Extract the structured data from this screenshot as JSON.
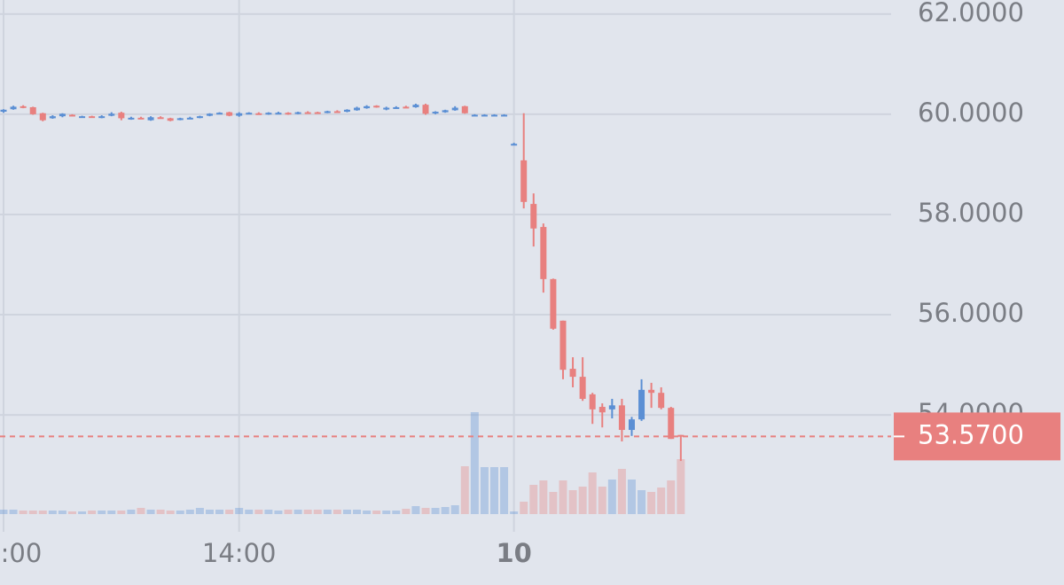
{
  "chart_data": {
    "type": "candlestick",
    "categories": [
      ":00",
      null,
      null,
      null,
      null,
      null,
      null,
      null,
      null,
      null,
      null,
      null,
      null,
      null,
      null,
      null,
      null,
      null,
      null,
      null,
      null,
      null,
      null,
      null,
      "14:00",
      null,
      null,
      null,
      null,
      null,
      null,
      null,
      null,
      null,
      null,
      null,
      null,
      null,
      null,
      null,
      null,
      null,
      null,
      null,
      null,
      null,
      null,
      null,
      null,
      null,
      null,
      null,
      "10",
      null,
      null,
      null,
      null,
      null,
      null,
      null,
      null,
      null,
      null,
      null,
      null,
      null,
      null,
      null,
      null,
      null
    ],
    "open": [
      60.05,
      60.1,
      60.16,
      60.14,
      60.02,
      59.92,
      59.96,
      59.99,
      59.95,
      59.96,
      59.93,
      59.97,
      60.03,
      59.91,
      59.93,
      59.88,
      59.94,
      59.92,
      59.89,
      59.93,
      59.93,
      59.97,
      60.01,
      60.04,
      59.97,
      60.01,
      60.02,
      60.0,
      60.01,
      60.03,
      60.01,
      60.04,
      60.04,
      60.03,
      60.06,
      60.05,
      60.08,
      60.12,
      60.17,
      60.1,
      60.12,
      60.15,
      60.14,
      60.19,
      60.03,
      60.04,
      60.08,
      60.16,
      59.98,
      59.98,
      59.98,
      59.98,
      59.39,
      59.08,
      58.21,
      57.75,
      56.71,
      55.88,
      54.92,
      54.76,
      54.41,
      54.16,
      54.11,
      54.19,
      53.7,
      53.91,
      54.5,
      54.44,
      54.14,
      53.6
    ],
    "high": [
      60.1,
      60.17,
      60.18,
      60.15,
      60.03,
      59.98,
      60.02,
      60.0,
      59.97,
      59.97,
      59.98,
      60.04,
      60.05,
      59.95,
      59.95,
      59.96,
      59.96,
      59.93,
      59.93,
      59.95,
      59.97,
      60.02,
      60.04,
      60.05,
      60.04,
      60.04,
      60.04,
      60.04,
      60.05,
      60.04,
      60.05,
      60.06,
      60.05,
      60.07,
      60.08,
      60.1,
      60.15,
      60.18,
      60.18,
      60.15,
      60.16,
      60.17,
      60.21,
      60.21,
      60.06,
      60.09,
      60.16,
      60.17,
      60.0,
      60.0,
      60.0,
      60.0,
      59.43,
      60.02,
      58.42,
      57.82,
      56.72,
      55.88,
      55.15,
      55.15,
      54.44,
      54.23,
      54.32,
      54.32,
      53.96,
      54.71,
      54.64,
      54.55,
      54.16,
      53.6
    ],
    "low": [
      60.03,
      60.09,
      60.12,
      59.99,
      59.86,
      59.91,
      59.94,
      59.96,
      59.93,
      59.93,
      59.92,
      59.96,
      59.88,
      59.89,
      59.9,
      59.87,
      59.91,
      59.86,
      59.88,
      59.92,
      59.92,
      59.96,
      60.0,
      59.96,
      59.95,
      60.0,
      59.99,
      59.99,
      60.0,
      59.99,
      60.0,
      60.01,
      60.01,
      60.02,
      60.03,
      60.04,
      60.07,
      60.11,
      60.13,
      60.08,
      60.11,
      60.13,
      60.13,
      59.99,
      60.0,
      60.03,
      60.07,
      60.01,
      59.97,
      59.97,
      59.97,
      59.97,
      59.38,
      58.12,
      57.36,
      56.44,
      55.7,
      54.71,
      54.55,
      54.28,
      53.82,
      53.75,
      53.93,
      53.47,
      53.58,
      53.88,
      54.14,
      54.11,
      53.52,
      53.08
    ],
    "close": [
      60.09,
      60.15,
      60.14,
      60.0,
      59.88,
      59.96,
      60.01,
      59.97,
      59.96,
      59.94,
      59.96,
      60.01,
      59.92,
      59.93,
      59.91,
      59.94,
      59.93,
      59.87,
      59.92,
      59.93,
      59.96,
      60.01,
      60.03,
      59.97,
      60.02,
      60.03,
      60.0,
      60.03,
      60.03,
      60.01,
      60.04,
      60.02,
      60.02,
      60.06,
      60.05,
      60.09,
      60.13,
      60.16,
      60.14,
      60.13,
      60.14,
      60.14,
      60.19,
      60.01,
      60.05,
      60.08,
      60.13,
      60.02,
      59.99,
      59.99,
      59.99,
      59.99,
      59.41,
      58.25,
      57.72,
      56.71,
      55.72,
      54.9,
      54.76,
      54.32,
      54.11,
      54.05,
      54.19,
      53.7,
      53.91,
      54.5,
      54.44,
      54.14,
      53.52,
      53.57
    ],
    "volume": [
      5,
      5,
      4,
      4,
      4,
      4,
      4,
      3,
      3,
      4,
      4,
      4,
      4,
      5,
      7,
      5,
      5,
      4,
      4,
      5,
      7,
      5,
      5,
      5,
      7,
      5,
      5,
      5,
      4,
      5,
      5,
      5,
      5,
      5,
      5,
      5,
      5,
      4,
      4,
      4,
      4,
      6,
      9,
      7,
      7,
      8,
      10,
      54,
      115,
      53,
      53,
      53,
      3,
      14,
      33,
      38,
      25,
      38,
      27,
      31,
      47,
      31,
      39,
      51,
      39,
      27,
      25,
      30,
      38,
      62
    ],
    "up_color": "#5b8fd4",
    "down_color": "#e8807f",
    "ylim": [
      52.02,
      62.28
    ],
    "yticks": [
      {
        "value": 54,
        "label": "54.0000"
      },
      {
        "value": 56,
        "label": "56.0000"
      },
      {
        "value": 58,
        "label": "58.0000"
      },
      {
        "value": 60,
        "label": "60.0000"
      },
      {
        "value": 62,
        "label": "62.0000"
      }
    ],
    "last_price": {
      "value": 53.57,
      "label": "53.5700"
    },
    "grid": true
  }
}
